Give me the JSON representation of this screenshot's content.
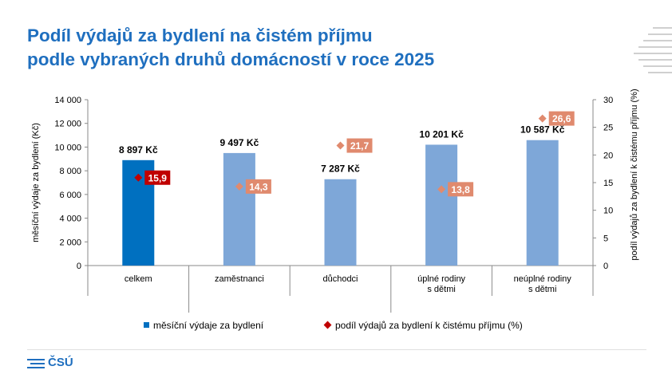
{
  "title": {
    "line1": "Podíl výdajů za bydlení na čistém příjmu",
    "line2": "podle vybraných druhů domácností v roce 2025"
  },
  "colors": {
    "title": "#1f6fbf",
    "bar_highlight": "#0070c0",
    "bar": "#7ea7d8",
    "diamond_highlight": "#c00000",
    "diamond": "#e08a6e"
  },
  "chart_data": {
    "type": "bar",
    "categories": [
      "celkem",
      "zaměstnanci",
      "důchodci",
      "úplné rodiny\ns dětmi",
      "neúplné rodiny\ns dětmi"
    ],
    "series": [
      {
        "name": "měsíční výdaje za bydlení",
        "axis": "left",
        "values": [
          8897,
          9497,
          7287,
          10201,
          10587
        ],
        "labels": [
          "8 897 Kč",
          "9 497 Kč",
          "7 287 Kč",
          "10 201 Kč",
          "10 587 Kč"
        ]
      },
      {
        "name": "podíl výdajů za bydlení k čistému příjmu (%)",
        "axis": "right",
        "marker": "diamond",
        "values": [
          15.9,
          14.3,
          21.7,
          13.8,
          26.6
        ],
        "labels": [
          "15,9",
          "14,3",
          "21,7",
          "13,8",
          "26,6"
        ]
      }
    ],
    "ylabel": "měsíční výdaje za bydlení (Kč)",
    "y2label": "podíl výdajů za bydlení k čistému příjmu (%)",
    "ylim": [
      0,
      14000
    ],
    "y2lim": [
      0,
      30
    ],
    "yticks": [
      "0",
      "2 000",
      "4 000",
      "6 000",
      "8 000",
      "10 000",
      "12 000",
      "14 000"
    ],
    "y2ticks": [
      "0",
      "5",
      "10",
      "15",
      "20",
      "25",
      "30"
    ],
    "legend_position": "bottom",
    "grid": false
  },
  "footer": {
    "logo_text": "ČSÚ"
  }
}
